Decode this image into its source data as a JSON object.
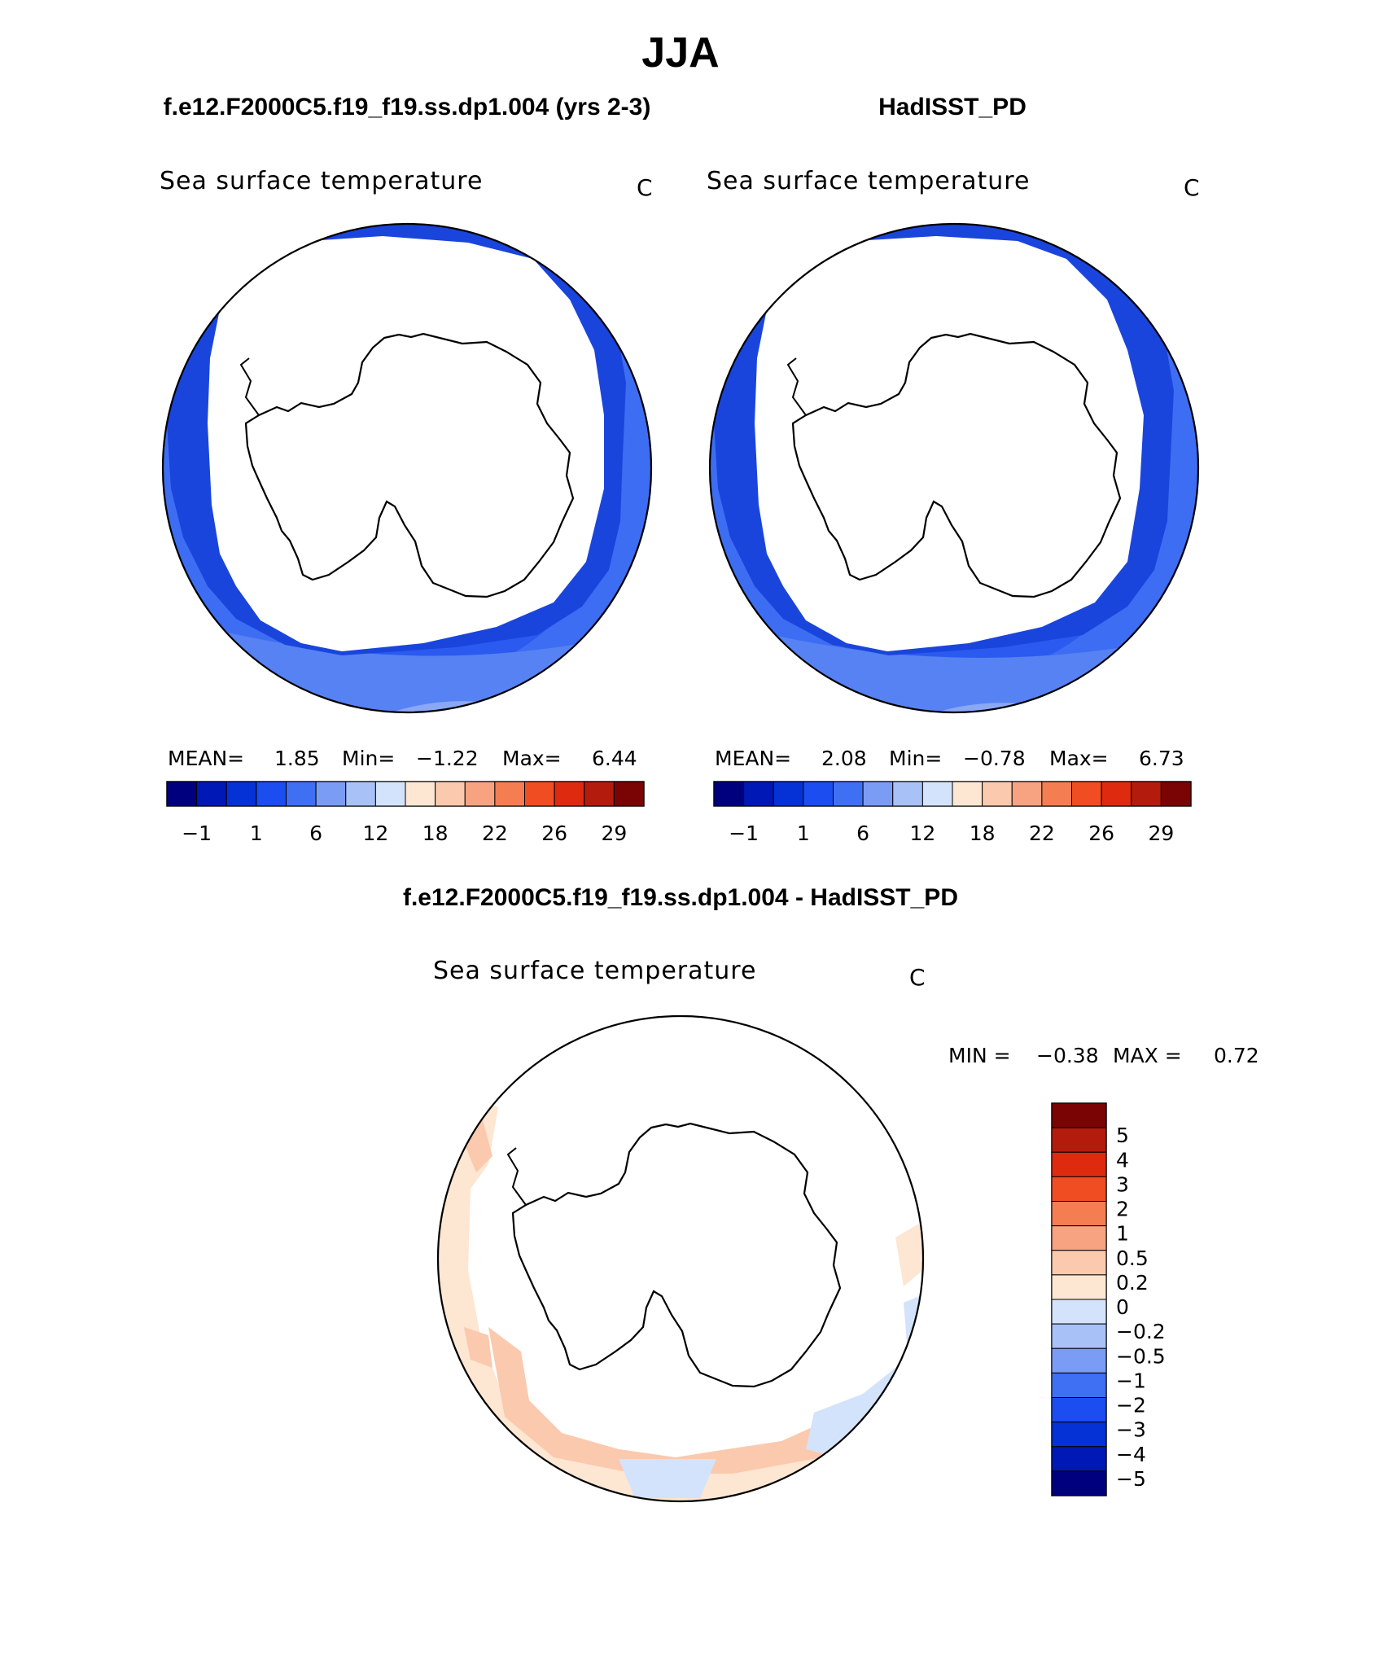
{
  "page": {
    "season": "JJA",
    "left_case": "f.e12.F2000C5.f19_f19.ss.dp1.004 (yrs 2-3)",
    "right_case": "HadISST_PD",
    "diff_case": "f.e12.F2000C5.f19_f19.ss.dp1.004 - HadISST_PD"
  },
  "colors": {
    "abs_scale": [
      "#00007f",
      "#0018b5",
      "#0532d6",
      "#1b4df0",
      "#3f6ff2",
      "#7a9cf5",
      "#a8c1f7",
      "#d3e3fb",
      "#fde6d2",
      "#fbc9ad",
      "#f7a381",
      "#f47d52",
      "#f04d23",
      "#de2b10",
      "#b31c0c",
      "#7a0403"
    ],
    "diff_scale": [
      "#7a0403",
      "#b31c0c",
      "#de2b10",
      "#f04d23",
      "#f47d52",
      "#f7a381",
      "#fbc9ad",
      "#fde6d2",
      "#d3e3fb",
      "#a8c1f7",
      "#7a9cf5",
      "#3f6ff2",
      "#1b4df0",
      "#0532d6",
      "#0018b5",
      "#00007f"
    ]
  },
  "chart_data": [
    {
      "type": "heatmap",
      "projection": "south-polar-stereographic",
      "title": "Sea surface temperature",
      "units": "C",
      "stats": {
        "mean_label": "MEAN=",
        "mean": "1.85",
        "min_label": "Min=",
        "min": "−1.22",
        "max_label": "Max=",
        "max": "6.44"
      },
      "colorbar_ticks": [
        "−1",
        "1",
        "6",
        "12",
        "18",
        "22",
        "26",
        "29"
      ],
      "colorbar_orientation": "horizontal",
      "value_range": [
        -1.22,
        6.44
      ]
    },
    {
      "type": "heatmap",
      "projection": "south-polar-stereographic",
      "title": "Sea surface temperature",
      "units": "C",
      "stats": {
        "mean_label": "MEAN=",
        "mean": "2.08",
        "min_label": "Min=",
        "min": "−0.78",
        "max_label": "Max=",
        "max": "6.73"
      },
      "colorbar_ticks": [
        "−1",
        "1",
        "6",
        "12",
        "18",
        "22",
        "26",
        "29"
      ],
      "colorbar_orientation": "horizontal",
      "value_range": [
        -0.78,
        6.73
      ]
    },
    {
      "type": "heatmap",
      "projection": "south-polar-stereographic",
      "title": "Sea surface temperature",
      "units": "C",
      "stats": {
        "min_label": "MIN =",
        "min": "−0.38",
        "max_label": "MAX =",
        "max": "0.72"
      },
      "colorbar_ticks": [
        "5",
        "4",
        "3",
        "2",
        "1",
        "0.5",
        "0.2",
        "0",
        "−0.2",
        "−0.5",
        "−1",
        "−2",
        "−3",
        "−4",
        "−5"
      ],
      "colorbar_orientation": "vertical",
      "value_range": [
        -0.38,
        0.72
      ]
    }
  ]
}
